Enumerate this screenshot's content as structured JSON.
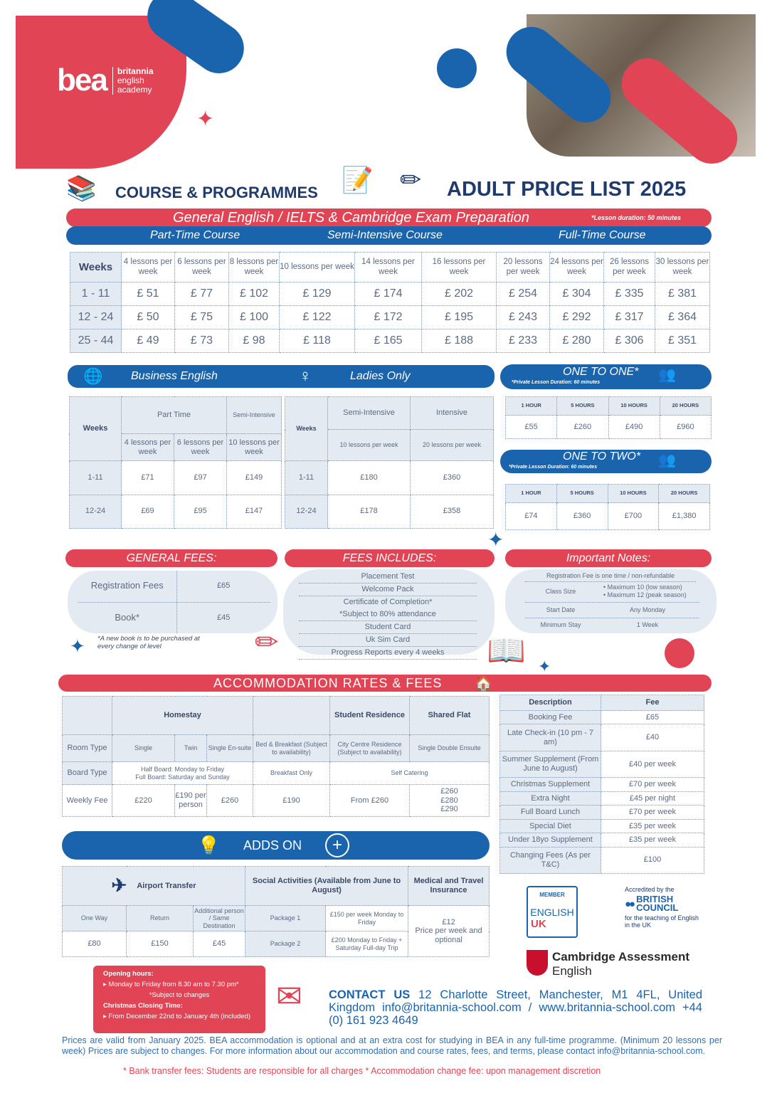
{
  "brand": {
    "name": "bea",
    "line1": "britannia",
    "line2": "english",
    "line3": "academy",
    "red": "#e14454",
    "blue": "#1a63ad",
    "navy": "#1f3b6e"
  },
  "header": {
    "left_title": "COURSE & PROGRAMMES",
    "right_title": "ADULT PRICE LIST 2025"
  },
  "general": {
    "title": "General English / IELTS & Cambridge Exam Preparation",
    "note": "*Lesson duration: 50 minutes",
    "courses": [
      "Part-Time Course",
      "Semi-Intensive Course",
      "Full-Time Course"
    ],
    "weeks_label": "Weeks",
    "headers": [
      "4 lessons per week",
      "6 lessons per week",
      "8 lessons per week",
      "10 lessons per week",
      "14 lessons per week",
      "16 lessons per week",
      "20 lessons per week",
      "24 lessons per week",
      "26 lessons per week",
      "30 lessons per week"
    ],
    "rows": [
      {
        "weeks": "1 - 11",
        "prices": [
          "£ 51",
          "£ 77",
          "£ 102",
          "£ 129",
          "£ 174",
          "£ 202",
          "£ 254",
          "£ 304",
          "£ 335",
          "£ 381"
        ]
      },
      {
        "weeks": "12  -  24",
        "prices": [
          "£ 50",
          "£ 75",
          "£ 100",
          "£ 122",
          "£ 172",
          "£ 195",
          "£ 243",
          "£ 292",
          "£ 317",
          "£ 364"
        ]
      },
      {
        "weeks": "25 - 44",
        "prices": [
          "£ 49",
          "£ 73",
          "£ 98",
          "£ 118",
          "£ 165",
          "£ 188",
          "£ 233",
          "£ 280",
          "£ 306",
          "£ 351"
        ]
      }
    ]
  },
  "business": {
    "title": "Business English",
    "weeks": "Weeks",
    "part_time": "Part Time",
    "semi": "Semi-Intensive",
    "cols": [
      "4 lessons per week",
      "6 lessons per week",
      "10 lessons per week"
    ],
    "rows": [
      {
        "weeks": "1-11",
        "prices": [
          "£71",
          "£97",
          "£149"
        ]
      },
      {
        "weeks": "12-24",
        "prices": [
          "£69",
          "£95",
          "£147"
        ]
      }
    ]
  },
  "ladies": {
    "title": "Ladies Only",
    "weeks": "Weeks",
    "cols": [
      "Semi-Intensive",
      "Intensive"
    ],
    "sub": [
      "10 lessons per week",
      "20 lessons per week"
    ],
    "rows": [
      {
        "weeks": "1-11",
        "prices": [
          "£180",
          "£360"
        ]
      },
      {
        "weeks": "12-24",
        "prices": [
          "£178",
          "£358"
        ]
      }
    ]
  },
  "one_to_one": {
    "title": "ONE TO ONE*",
    "note": "*Private Lesson Duration: 60 minutes",
    "cols": [
      "1 HOUR",
      "5 HOURS",
      "10 HOURS",
      "20 HOURS"
    ],
    "prices": [
      "£55",
      "£260",
      "£490",
      "£960"
    ]
  },
  "one_to_two": {
    "title": "ONE TO TWO*",
    "note": "*Private Lesson Duration: 60 minutes",
    "cols": [
      "1 HOUR",
      "5 HOURS",
      "10 HOURS",
      "20 HOURS"
    ],
    "prices": [
      "£74",
      "£360",
      "£700",
      "£1,380"
    ]
  },
  "general_fees": {
    "title": "GENERAL FEES:",
    "items": [
      {
        "label": "Registration Fees",
        "value": "£65"
      },
      {
        "label": "Book*",
        "value": "£45"
      }
    ],
    "note": "*A new book is to be purchased at every change of level"
  },
  "fees_includes": {
    "title": "FEES INCLUDES:",
    "items": [
      "Placement Test",
      "Welcome Pack",
      "Certificate of Completion*",
      "*Subject to 80% attendance",
      "Student Card",
      "Uk Sim Card",
      "Progress Reports every 4 weeks"
    ]
  },
  "notes": {
    "title": "Important Notes:",
    "registration": "Registration Fee is one time / non-refundable",
    "class_size": "Class Size",
    "class_values": [
      "Maximum 10  (low season)",
      "Maximum 12 (peak season)"
    ],
    "start_label": "Start Date",
    "start_value": "Any Monday",
    "stay_label": "Minimum Stay",
    "stay_value": "1 Week"
  },
  "accommodation": {
    "title": "ACCOMMODATION RATES & FEES",
    "homestay": "Homestay",
    "residence": "Student Residence",
    "flat": "Shared Flat",
    "room_type": "Room Type",
    "rooms": [
      "Single",
      "Twin",
      "Single En-suite",
      "Bed & Breakfast (Subject to availability)",
      "City Centre Residence (Subject to availability)",
      "Single Double Ensuite"
    ],
    "board_type": "Board Type",
    "boards": [
      "Half Board: Monday to Friday",
      "Full Board: Saturday and Sunday",
      "Breakfast Only",
      "Self Catering"
    ],
    "weekly_fee": "Weekly Fee",
    "fees": [
      "£220",
      "£190 per person",
      "£260",
      "£190",
      "From £260",
      "£260",
      "£280",
      "£290"
    ]
  },
  "acc_fees": {
    "desc": "Description",
    "fee": "Fee",
    "rows": [
      [
        "Booking Fee",
        "£65"
      ],
      [
        "Late Check-in (10 pm - 7 am)",
        "£40"
      ],
      [
        "Summer Supplement (From June to August)",
        "£40 per week"
      ],
      [
        "Christmas Supplement",
        "£70 per week"
      ],
      [
        "Extra Night",
        "£45 per night"
      ],
      [
        "Full Board Lunch",
        "£70 per week"
      ],
      [
        "Special Diet",
        "£35 per week"
      ],
      [
        "Under 18yo Supplement",
        "£35 per week"
      ],
      [
        "Changing Fees (As per T&C)",
        "£100"
      ]
    ]
  },
  "adds_on": {
    "title": "ADDS ON",
    "airport": "Airport Transfer",
    "airport_cols": [
      "One Way",
      "Return",
      "Additional person / Same Destination"
    ],
    "airport_prices": [
      "£80",
      "£150",
      "£45"
    ],
    "social": "Social Activities (Available from June to August)",
    "packages": [
      {
        "name": "Package 1",
        "price": "£150 per week Monday to Friday"
      },
      {
        "name": "Package 2",
        "price": "£200 Monday to Friday + Saturday Full-day Trip"
      }
    ],
    "insurance": "Medical and Travel Insurance",
    "insurance_price": "£12",
    "insurance_note": "Price per week and optional"
  },
  "accreditation": {
    "member": "MEMBER",
    "english": "ENGLISH",
    "uk": "UK",
    "accredited": "Accredited by the",
    "british": "BRITISH",
    "council": "COUNCIL",
    "for_teaching": "for the teaching of English in the UK",
    "cambridge": "Cambridge Assessment",
    "cambridge2": "English"
  },
  "hours": {
    "title": "Opening hours:",
    "line": "▸ Monday to Friday  from 8.30 am to 7.30 pm*",
    "subject": "*Subject to changes",
    "xmas": "Christmas Closing Time:",
    "xmas_line": "▸ From December 22nd to January 4th (included)"
  },
  "contact": {
    "label": "CONTACT  US",
    "text": "12 Charlotte Street, Manchester, M1 4FL, United Kingdom  info@britannia-school.com  /  www.britannia-school.com +44 (0) 161 923 4649"
  },
  "footer": {
    "text": "Prices are valid from January 2025. BEA accommodation is optional and at an extra cost for studying in BEA in any full-time programme. (Minimum 20 lessons per week) Prices are subject to changes. For more information about our accommodation and course rates, fees, and terms, please contact info@britannia-school.com.",
    "note": "* Bank transfer fees: Students are responsible for all charges * Accommodation change fee: upon management discretion"
  }
}
